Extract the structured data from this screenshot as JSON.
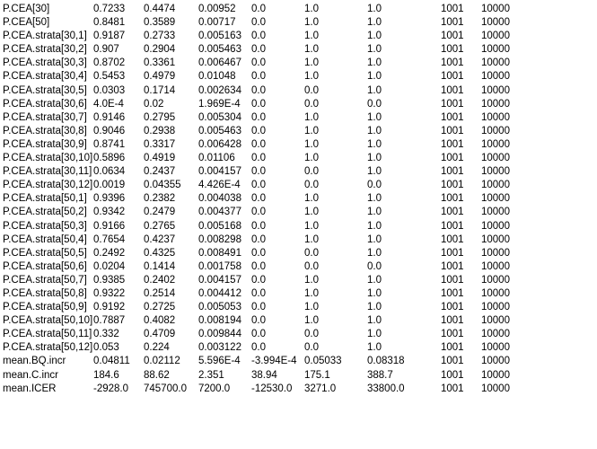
{
  "rows": [
    [
      "P.CEA[30]",
      "0.7233",
      "0.4474",
      "0.00952",
      "0.0",
      "1.0",
      "1.0",
      "1001",
      "10000"
    ],
    [
      "P.CEA[50]",
      "0.8481",
      "0.3589",
      "0.00717",
      "0.0",
      "1.0",
      "1.0",
      "1001",
      "10000"
    ],
    [
      "P.CEA.strata[30,1]",
      "0.9187",
      "0.2733",
      "0.005163",
      "0.0",
      "1.0",
      "1.0",
      "1001",
      "10000"
    ],
    [
      "P.CEA.strata[30,2]",
      "0.907",
      "0.2904",
      "0.005463",
      "0.0",
      "1.0",
      "1.0",
      "1001",
      "10000"
    ],
    [
      "P.CEA.strata[30,3]",
      "0.8702",
      "0.3361",
      "0.006467",
      "0.0",
      "1.0",
      "1.0",
      "1001",
      "10000"
    ],
    [
      "P.CEA.strata[30,4]",
      "0.5453",
      "0.4979",
      "0.01048",
      "0.0",
      "1.0",
      "1.0",
      "1001",
      "10000"
    ],
    [
      "P.CEA.strata[30,5]",
      "0.0303",
      "0.1714",
      "0.002634",
      "0.0",
      "0.0",
      "1.0",
      "1001",
      "10000"
    ],
    [
      "P.CEA.strata[30,6]",
      "4.0E-4",
      "0.02",
      "1.969E-4",
      "0.0",
      "0.0",
      "0.0",
      "1001",
      "10000"
    ],
    [
      "P.CEA.strata[30,7]",
      "0.9146",
      "0.2795",
      "0.005304",
      "0.0",
      "1.0",
      "1.0",
      "1001",
      "10000"
    ],
    [
      "P.CEA.strata[30,8]",
      "0.9046",
      "0.2938",
      "0.005463",
      "0.0",
      "1.0",
      "1.0",
      "1001",
      "10000"
    ],
    [
      "P.CEA.strata[30,9]",
      "0.8741",
      "0.3317",
      "0.006428",
      "0.0",
      "1.0",
      "1.0",
      "1001",
      "10000"
    ],
    [
      "P.CEA.strata[30,10]",
      "0.5896",
      "0.4919",
      "0.01106",
      "0.0",
      "1.0",
      "1.0",
      "1001",
      "10000"
    ],
    [
      "P.CEA.strata[30,11]",
      "0.0634",
      "0.2437",
      "0.004157",
      "0.0",
      "0.0",
      "1.0",
      "1001",
      "10000"
    ],
    [
      "P.CEA.strata[30,12]",
      "0.0019",
      "0.04355",
      "4.426E-4",
      "0.0",
      "0.0",
      "0.0",
      "1001",
      "10000"
    ],
    [
      "P.CEA.strata[50,1]",
      "0.9396",
      "0.2382",
      "0.004038",
      "0.0",
      "1.0",
      "1.0",
      "1001",
      "10000"
    ],
    [
      "P.CEA.strata[50,2]",
      "0.9342",
      "0.2479",
      "0.004377",
      "0.0",
      "1.0",
      "1.0",
      "1001",
      "10000"
    ],
    [
      "P.CEA.strata[50,3]",
      "0.9166",
      "0.2765",
      "0.005168",
      "0.0",
      "1.0",
      "1.0",
      "1001",
      "10000"
    ],
    [
      "P.CEA.strata[50,4]",
      "0.7654",
      "0.4237",
      "0.008298",
      "0.0",
      "1.0",
      "1.0",
      "1001",
      "10000"
    ],
    [
      "P.CEA.strata[50,5]",
      "0.2492",
      "0.4325",
      "0.008491",
      "0.0",
      "0.0",
      "1.0",
      "1001",
      "10000"
    ],
    [
      "P.CEA.strata[50,6]",
      "0.0204",
      "0.1414",
      "0.001758",
      "0.0",
      "0.0",
      "0.0",
      "1001",
      "10000"
    ],
    [
      "P.CEA.strata[50,7]",
      "0.9385",
      "0.2402",
      "0.004157",
      "0.0",
      "1.0",
      "1.0",
      "1001",
      "10000"
    ],
    [
      "P.CEA.strata[50,8]",
      "0.9322",
      "0.2514",
      "0.004412",
      "0.0",
      "1.0",
      "1.0",
      "1001",
      "10000"
    ],
    [
      "P.CEA.strata[50,9]",
      "0.9192",
      "0.2725",
      "0.005053",
      "0.0",
      "1.0",
      "1.0",
      "1001",
      "10000"
    ],
    [
      "P.CEA.strata[50,10]",
      "0.7887",
      "0.4082",
      "0.008194",
      "0.0",
      "1.0",
      "1.0",
      "1001",
      "10000"
    ],
    [
      "P.CEA.strata[50,11]",
      "0.332",
      "0.4709",
      "0.009844",
      "0.0",
      "0.0",
      "1.0",
      "1001",
      "10000"
    ],
    [
      "P.CEA.strata[50,12]",
      "0.053",
      "0.224",
      "0.003122",
      "0.0",
      "0.0",
      "1.0",
      "1001",
      "10000"
    ],
    [
      "mean.BQ.incr",
      "0.04811",
      "0.02112",
      "5.596E-4",
      "-3.994E-4",
      "0.05033",
      "0.08318",
      "1001",
      "10000"
    ],
    [
      "mean.C.incr",
      "184.6",
      "88.62",
      "2.351",
      "38.94",
      "175.1",
      "388.7",
      "1001",
      "10000"
    ],
    [
      "mean.ICER",
      "-2928.0",
      "745700.0",
      "7200.0",
      "-12530.0",
      "3271.0",
      "33800.0",
      "1001",
      "10000"
    ]
  ]
}
